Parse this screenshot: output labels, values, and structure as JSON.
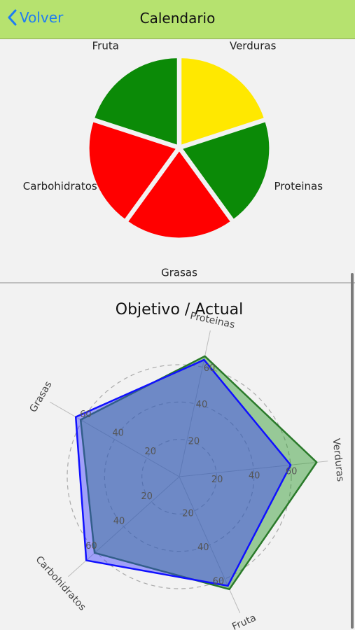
{
  "navbar": {
    "back_label": "Volver",
    "title": "Calendario"
  },
  "colors": {
    "green": "#0b8a07",
    "yellow": "#ffe800",
    "red": "#ff0000",
    "navbar": "#b6e26f",
    "link": "#1e7cf2"
  },
  "chart_data": [
    {
      "type": "pie",
      "categories": [
        "Verduras",
        "Proteinas",
        "Grasas",
        "Carbohidratos",
        "Fruta"
      ],
      "values": [
        1,
        1,
        1,
        1,
        1
      ],
      "colors": [
        "#ffe800",
        "#0b8a07",
        "#ff0000",
        "#ff0000",
        "#0b8a07"
      ],
      "title": ""
    },
    {
      "type": "radar",
      "title": "Objetivo / Actual",
      "axes": [
        "Proteinas",
        "Verduras",
        "Fruta",
        "Carbohidratos",
        "Grasas"
      ],
      "ticks": [
        "20",
        "40",
        "60"
      ],
      "rmax": 75,
      "series": [
        {
          "values": [
            66,
            74,
            66,
            61,
            61
          ],
          "color": "#2a7a2a",
          "fill": "rgba(40,150,40,0.45)"
        },
        {
          "values": [
            64,
            60,
            64,
            67,
            64
          ],
          "color": "#1010ff",
          "fill": "rgba(60,60,255,0.45)"
        }
      ]
    }
  ]
}
